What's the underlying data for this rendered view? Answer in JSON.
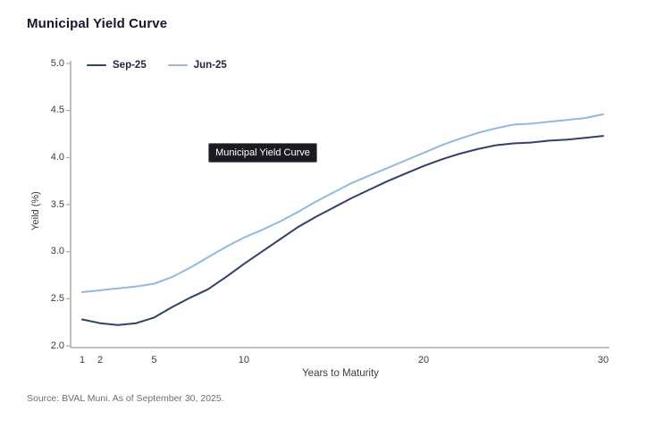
{
  "title": "Municipal Yield Curve",
  "tooltip": {
    "label": "Municipal Yield Curve"
  },
  "source": "Source: BVAL Muni. As of September 30, 2025.",
  "colors": {
    "sep_line": "#32406a",
    "jun_line": "#91b9e1",
    "axis": "#ababab",
    "tooltip_bg": "#1b1b22",
    "title_text": "#16162e"
  },
  "chart_data": {
    "type": "line",
    "title": "Municipal Yield Curve",
    "xlabel": "Years to Maturity",
    "ylabel": "Yeild (%)",
    "xlim": [
      1,
      30
    ],
    "ylim": [
      2.0,
      5.0
    ],
    "grid": false,
    "legend_position": "top",
    "x": [
      1,
      2,
      3,
      4,
      5,
      6,
      7,
      8,
      9,
      10,
      11,
      12,
      13,
      14,
      15,
      16,
      17,
      18,
      19,
      20,
      21,
      22,
      23,
      24,
      25,
      26,
      27,
      28,
      29,
      30
    ],
    "xticks": [
      1,
      2,
      5,
      10,
      20,
      30
    ],
    "xtick_labels": [
      "1",
      "2",
      "5",
      "10",
      "20",
      "30"
    ],
    "yticks": [
      2.0,
      2.5,
      3.0,
      3.5,
      4.0,
      4.5,
      5.0
    ],
    "ytick_labels": [
      "2.0",
      "2.5",
      "3.0",
      "3.5",
      "4.0",
      "4.5",
      "5.0"
    ],
    "series": [
      {
        "name": "Sep-25",
        "color": "#32406a",
        "values": [
          2.28,
          2.24,
          2.22,
          2.24,
          2.3,
          2.41,
          2.51,
          2.6,
          2.73,
          2.87,
          3.0,
          3.13,
          3.26,
          3.37,
          3.47,
          3.57,
          3.66,
          3.75,
          3.83,
          3.91,
          3.98,
          4.04,
          4.09,
          4.13,
          4.15,
          4.16,
          4.18,
          4.19,
          4.21,
          4.23
        ]
      },
      {
        "name": "Jun-25",
        "color": "#91b9e1",
        "values": [
          2.57,
          2.59,
          2.61,
          2.63,
          2.66,
          2.73,
          2.83,
          2.94,
          3.05,
          3.15,
          3.23,
          3.32,
          3.42,
          3.53,
          3.63,
          3.73,
          3.81,
          3.89,
          3.97,
          4.05,
          4.13,
          4.2,
          4.26,
          4.31,
          4.35,
          4.36,
          4.38,
          4.4,
          4.42,
          4.46
        ]
      }
    ]
  }
}
